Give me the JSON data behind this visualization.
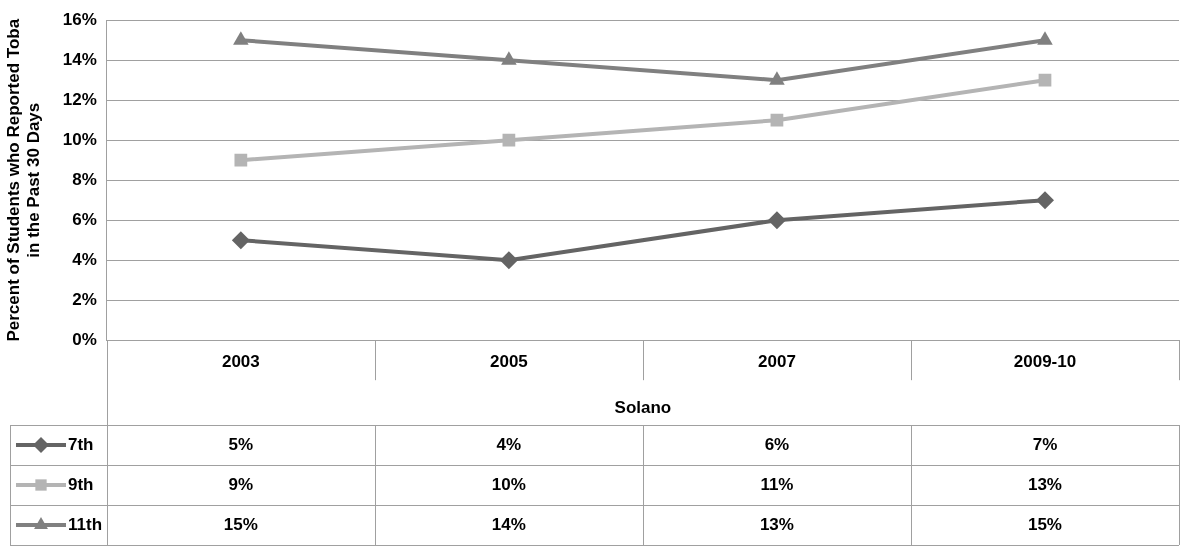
{
  "chart_data": {
    "type": "line",
    "ylabel": "Percent of Students who Reported Toba\nin the Past 30 Days",
    "xlabel": "Solano",
    "categories": [
      "2003",
      "2005",
      "2007",
      "2009-10"
    ],
    "series": [
      {
        "name": "7th",
        "color": "#646464",
        "values": [
          5,
          4,
          6,
          7
        ],
        "value_labels": [
          "5%",
          "4%",
          "6%",
          "7%"
        ],
        "marker": "diamond"
      },
      {
        "name": "9th",
        "color": "#b4b4b4",
        "values": [
          9,
          10,
          11,
          13
        ],
        "value_labels": [
          "9%",
          "10%",
          "11%",
          "13%"
        ],
        "marker": "square"
      },
      {
        "name": "11th",
        "color": "#808080",
        "values": [
          15,
          14,
          13,
          15
        ],
        "value_labels": [
          "15%",
          "14%",
          "13%",
          "15%"
        ],
        "marker": "triangle"
      }
    ],
    "ylim": [
      0,
      16
    ],
    "yticks": [
      {
        "value": 0,
        "label": "0%"
      },
      {
        "value": 2,
        "label": "2%"
      },
      {
        "value": 4,
        "label": "4%"
      },
      {
        "value": 6,
        "label": "6%"
      },
      {
        "value": 8,
        "label": "8%"
      },
      {
        "value": 10,
        "label": "10%"
      },
      {
        "value": 12,
        "label": "12%"
      },
      {
        "value": 14,
        "label": "14%"
      },
      {
        "value": 16,
        "label": "16%"
      }
    ],
    "grid": "y",
    "legend": "bottom"
  }
}
